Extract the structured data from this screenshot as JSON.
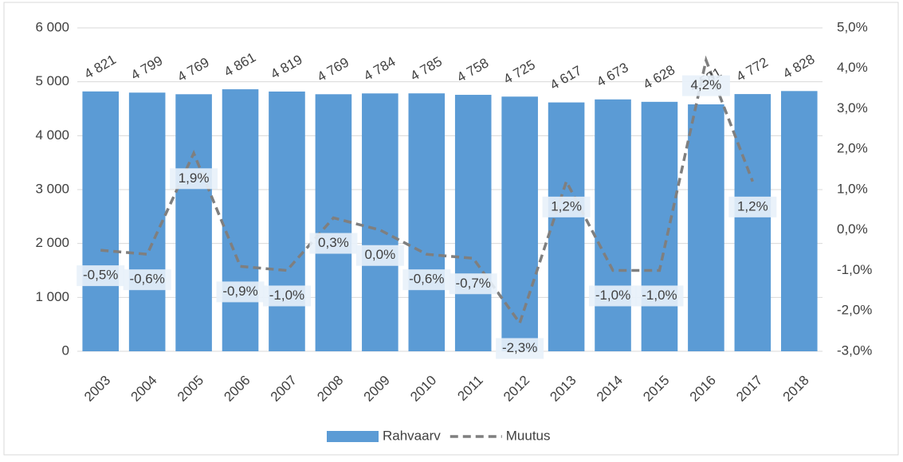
{
  "chart_data": {
    "type": "bar_line",
    "categories": [
      "2003",
      "2004",
      "2005",
      "2006",
      "2007",
      "2008",
      "2009",
      "2010",
      "2011",
      "2012",
      "2013",
      "2014",
      "2015",
      "2016",
      "2017",
      "2018"
    ],
    "series": [
      {
        "name": "Rahvaarv",
        "type": "bar",
        "color": "#5b9bd5",
        "values": [
          4821,
          4799,
          4769,
          4861,
          4819,
          4769,
          4784,
          4785,
          4758,
          4725,
          4617,
          4673,
          4628,
          4581,
          4772,
          4828
        ],
        "value_labels": [
          "4 821",
          "4 799",
          "4 769",
          "4 861",
          "4 819",
          "4 769",
          "4 784",
          "4 785",
          "4 758",
          "4 725",
          "4 617",
          "4 673",
          "4 628",
          "4 581",
          "4 772",
          "4 828"
        ]
      },
      {
        "name": "Muutus",
        "type": "line",
        "axis": "y2",
        "color": "#7f7f7f",
        "dashed": true,
        "values": [
          -0.5,
          -0.6,
          1.9,
          -0.9,
          -1.0,
          0.3,
          0.0,
          -0.6,
          -0.7,
          -2.3,
          1.2,
          -1.0,
          -1.0,
          4.2,
          1.2,
          null
        ],
        "value_labels": [
          "-0,5%",
          "-0,6%",
          "1,9%",
          "-0,9%",
          "-1,0%",
          "0,3%",
          "0,0%",
          "-0,6%",
          "-0,7%",
          "-2,3%",
          "1,2%",
          "-1,0%",
          "-1,0%",
          "4,2%",
          "1,2%",
          null
        ]
      }
    ],
    "ylim": [
      0,
      6000
    ],
    "yticks": [
      0,
      {
        "value": 1000,
        "label": "1 000"
      },
      {
        "value": 2000,
        "label": "2 000"
      },
      {
        "value": 3000,
        "label": "3 000"
      },
      {
        "value": 4000,
        "label": "4 000"
      },
      {
        "value": 5000,
        "label": "5 000"
      },
      {
        "value": 6000,
        "label": "6 000"
      }
    ],
    "y2lim": [
      -3,
      5
    ],
    "y2ticks": [
      {
        "value": -3,
        "label": "-3,0%"
      },
      {
        "value": -2,
        "label": "-2,0%"
      },
      {
        "value": -1,
        "label": "-1,0%"
      },
      {
        "value": 0,
        "label": "0,0%"
      },
      {
        "value": 1,
        "label": "1,0%"
      },
      {
        "value": 2,
        "label": "2,0%"
      },
      {
        "value": 3,
        "label": "3,0%"
      },
      {
        "value": 4,
        "label": "4,0%"
      },
      {
        "value": 5,
        "label": "5,0%"
      }
    ],
    "grid": true,
    "legend": "bottom"
  }
}
